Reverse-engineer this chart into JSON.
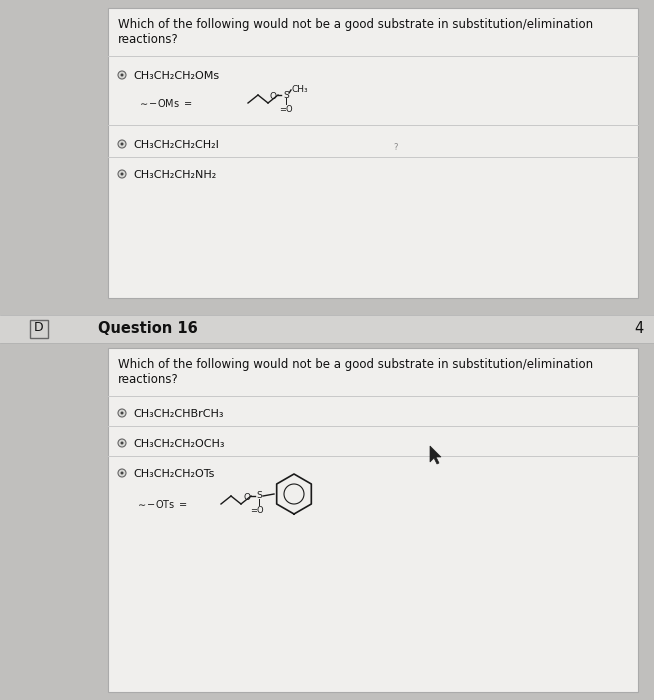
{
  "bg_color": "#c0bfbd",
  "panel_bg": "#eae9e7",
  "header_bg": "#d4d3d1",
  "white_panel": "#f0efed",
  "text_dark": "#1a1a1a",
  "text_bold": "#111111",
  "radio_edge": "#666666",
  "line_color": "#c0c0c0",
  "q15_question": "Which of the following would not be a good substrate in substitution/elimination\nreactions?",
  "q15_opts": [
    "CH₃CH₂CH₂OMs",
    "CH₃CH₂CH₂CH₂I",
    "CH₃CH₂CH₂NH₂"
  ],
  "q16_label": "D",
  "q16_title": "Question 16",
  "q16_pts": "4",
  "q16_question": "Which of the following would not be a good substrate in substitution/elimination\nreactions?",
  "q16_opts": [
    "CH₃CH₂CHBrCH₃",
    "CH₃CH₂CH₂OCH₃",
    "CH₃CH₂CH₂OTs"
  ],
  "font_q": 8.5,
  "font_opt": 8.0,
  "font_hdr": 10.5,
  "font_struct": 6.5
}
